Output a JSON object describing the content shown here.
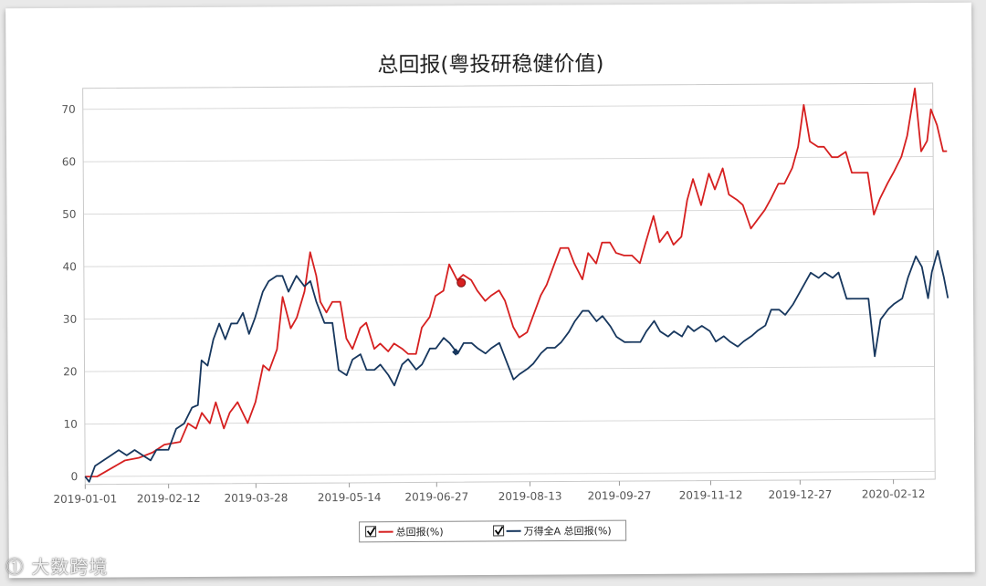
{
  "chart_data": {
    "type": "line",
    "title": "总回报(粤投研稳健价值)",
    "xlabel": "",
    "ylabel": "",
    "x_start": "2019-01-01",
    "x_end": "2020-03-04",
    "x_ticks": [
      "2019-01-01",
      "2019-02-12",
      "2019-03-28",
      "2019-05-14",
      "2019-06-27",
      "2019-08-13",
      "2019-09-27",
      "2019-11-12",
      "2019-12-27",
      "2020-02-12"
    ],
    "y_ticks": [
      0,
      10,
      20,
      30,
      40,
      50,
      60,
      70
    ],
    "ylim": [
      -1.5,
      74
    ],
    "grid": "horizontal",
    "legend_position": "bottom-center",
    "series": [
      {
        "name": "总回报(%)",
        "color": "#d62020",
        "marker_date": "2019-07-10",
        "marker_value": 36.5,
        "points": [
          [
            "2019-01-01",
            0
          ],
          [
            "2019-01-07",
            0
          ],
          [
            "2019-01-14",
            1.5
          ],
          [
            "2019-01-21",
            3
          ],
          [
            "2019-01-28",
            3.5
          ],
          [
            "2019-02-04",
            4.5
          ],
          [
            "2019-02-10",
            6
          ],
          [
            "2019-02-18",
            6.5
          ],
          [
            "2019-02-22",
            10
          ],
          [
            "2019-02-26",
            9
          ],
          [
            "2019-03-01",
            12
          ],
          [
            "2019-03-05",
            10
          ],
          [
            "2019-03-08",
            14
          ],
          [
            "2019-03-12",
            9
          ],
          [
            "2019-03-15",
            12
          ],
          [
            "2019-03-19",
            14
          ],
          [
            "2019-03-24",
            10
          ],
          [
            "2019-03-28",
            14
          ],
          [
            "2019-04-01",
            21
          ],
          [
            "2019-04-04",
            20
          ],
          [
            "2019-04-08",
            24
          ],
          [
            "2019-04-11",
            34
          ],
          [
            "2019-04-15",
            28
          ],
          [
            "2019-04-18",
            30
          ],
          [
            "2019-04-22",
            35
          ],
          [
            "2019-04-25",
            42.5
          ],
          [
            "2019-04-28",
            38
          ],
          [
            "2019-04-30",
            33
          ],
          [
            "2019-05-03",
            31
          ],
          [
            "2019-05-06",
            33
          ],
          [
            "2019-05-10",
            33
          ],
          [
            "2019-05-13",
            26
          ],
          [
            "2019-05-16",
            24
          ],
          [
            "2019-05-20",
            28
          ],
          [
            "2019-05-23",
            29
          ],
          [
            "2019-05-27",
            24
          ],
          [
            "2019-05-30",
            25
          ],
          [
            "2019-06-03",
            23.5
          ],
          [
            "2019-06-06",
            25
          ],
          [
            "2019-06-10",
            24
          ],
          [
            "2019-06-13",
            23
          ],
          [
            "2019-06-17",
            23
          ],
          [
            "2019-06-20",
            28
          ],
          [
            "2019-06-24",
            30
          ],
          [
            "2019-06-27",
            34
          ],
          [
            "2019-07-01",
            35
          ],
          [
            "2019-07-04",
            40
          ],
          [
            "2019-07-08",
            37
          ],
          [
            "2019-07-11",
            38
          ],
          [
            "2019-07-15",
            37
          ],
          [
            "2019-07-18",
            35
          ],
          [
            "2019-07-22",
            33
          ],
          [
            "2019-07-25",
            34
          ],
          [
            "2019-07-29",
            35
          ],
          [
            "2019-08-01",
            33
          ],
          [
            "2019-08-05",
            28
          ],
          [
            "2019-08-08",
            26
          ],
          [
            "2019-08-12",
            27
          ],
          [
            "2019-08-15",
            30
          ],
          [
            "2019-08-19",
            34
          ],
          [
            "2019-08-22",
            36
          ],
          [
            "2019-08-26",
            40
          ],
          [
            "2019-08-29",
            43
          ],
          [
            "2019-09-02",
            43
          ],
          [
            "2019-09-05",
            40
          ],
          [
            "2019-09-09",
            37
          ],
          [
            "2019-09-12",
            42
          ],
          [
            "2019-09-16",
            40
          ],
          [
            "2019-09-19",
            44
          ],
          [
            "2019-09-23",
            44
          ],
          [
            "2019-09-26",
            42
          ],
          [
            "2019-09-30",
            41.5
          ],
          [
            "2019-10-04",
            41.5
          ],
          [
            "2019-10-08",
            40
          ],
          [
            "2019-10-11",
            44
          ],
          [
            "2019-10-15",
            49
          ],
          [
            "2019-10-18",
            44
          ],
          [
            "2019-10-22",
            46
          ],
          [
            "2019-10-25",
            43.5
          ],
          [
            "2019-10-29",
            45
          ],
          [
            "2019-11-01",
            52
          ],
          [
            "2019-11-04",
            56
          ],
          [
            "2019-11-08",
            51
          ],
          [
            "2019-11-12",
            57
          ],
          [
            "2019-11-15",
            54
          ],
          [
            "2019-11-19",
            58
          ],
          [
            "2019-11-22",
            53
          ],
          [
            "2019-11-26",
            52
          ],
          [
            "2019-11-29",
            51
          ],
          [
            "2019-12-03",
            46.5
          ],
          [
            "2019-12-06",
            48
          ],
          [
            "2019-12-10",
            50
          ],
          [
            "2019-12-13",
            52
          ],
          [
            "2019-12-17",
            55
          ],
          [
            "2019-12-20",
            55
          ],
          [
            "2019-12-24",
            58
          ],
          [
            "2019-12-27",
            62
          ],
          [
            "2019-12-30",
            70
          ],
          [
            "2020-01-02",
            63
          ],
          [
            "2020-01-06",
            62
          ],
          [
            "2020-01-09",
            62
          ],
          [
            "2020-01-13",
            60
          ],
          [
            "2020-01-16",
            60
          ],
          [
            "2020-01-20",
            61
          ],
          [
            "2020-01-23",
            57
          ],
          [
            "2020-01-27",
            57
          ],
          [
            "2020-01-31",
            57
          ],
          [
            "2020-02-03",
            49
          ],
          [
            "2020-02-06",
            52
          ],
          [
            "2020-02-10",
            55
          ],
          [
            "2020-02-13",
            57
          ],
          [
            "2020-02-17",
            60
          ],
          [
            "2020-02-20",
            64
          ],
          [
            "2020-02-24",
            73
          ],
          [
            "2020-02-27",
            61
          ],
          [
            "2020-03-01",
            63
          ],
          [
            "2020-03-03",
            69
          ],
          [
            "2020-03-06",
            66
          ],
          [
            "2020-03-09",
            61
          ],
          [
            "2020-03-11",
            61
          ]
        ]
      },
      {
        "name": "万得全A 总回报(%)",
        "color": "#17375e",
        "marker_date": "2019-07-07",
        "marker_value": 23.3,
        "points": [
          [
            "2019-01-01",
            0
          ],
          [
            "2019-01-03",
            -1
          ],
          [
            "2019-01-06",
            2
          ],
          [
            "2019-01-10",
            3
          ],
          [
            "2019-01-14",
            4
          ],
          [
            "2019-01-18",
            5
          ],
          [
            "2019-01-22",
            4
          ],
          [
            "2019-01-26",
            5
          ],
          [
            "2019-01-30",
            4
          ],
          [
            "2019-02-03",
            3
          ],
          [
            "2019-02-06",
            5
          ],
          [
            "2019-02-12",
            5
          ],
          [
            "2019-02-16",
            9
          ],
          [
            "2019-02-20",
            10
          ],
          [
            "2019-02-24",
            13
          ],
          [
            "2019-02-27",
            13.5
          ],
          [
            "2019-03-01",
            22
          ],
          [
            "2019-03-04",
            21
          ],
          [
            "2019-03-07",
            26
          ],
          [
            "2019-03-10",
            29
          ],
          [
            "2019-03-13",
            26
          ],
          [
            "2019-03-16",
            29
          ],
          [
            "2019-03-19",
            29
          ],
          [
            "2019-03-22",
            31
          ],
          [
            "2019-03-25",
            27
          ],
          [
            "2019-03-28",
            30
          ],
          [
            "2019-04-01",
            35
          ],
          [
            "2019-04-04",
            37
          ],
          [
            "2019-04-08",
            38
          ],
          [
            "2019-04-11",
            38
          ],
          [
            "2019-04-14",
            35
          ],
          [
            "2019-04-18",
            38
          ],
          [
            "2019-04-22",
            36
          ],
          [
            "2019-04-25",
            37
          ],
          [
            "2019-04-28",
            33
          ],
          [
            "2019-05-02",
            29
          ],
          [
            "2019-05-06",
            29
          ],
          [
            "2019-05-09",
            20
          ],
          [
            "2019-05-13",
            19
          ],
          [
            "2019-05-16",
            22
          ],
          [
            "2019-05-20",
            23
          ],
          [
            "2019-05-23",
            20
          ],
          [
            "2019-05-27",
            20
          ],
          [
            "2019-05-30",
            21
          ],
          [
            "2019-06-03",
            19
          ],
          [
            "2019-06-06",
            17
          ],
          [
            "2019-06-10",
            21
          ],
          [
            "2019-06-13",
            22
          ],
          [
            "2019-06-17",
            20
          ],
          [
            "2019-06-20",
            21
          ],
          [
            "2019-06-24",
            24
          ],
          [
            "2019-06-27",
            24
          ],
          [
            "2019-07-01",
            26
          ],
          [
            "2019-07-04",
            25
          ],
          [
            "2019-07-08",
            23
          ],
          [
            "2019-07-11",
            25
          ],
          [
            "2019-07-15",
            25
          ],
          [
            "2019-07-18",
            24
          ],
          [
            "2019-07-22",
            23
          ],
          [
            "2019-07-25",
            24
          ],
          [
            "2019-07-29",
            25
          ],
          [
            "2019-08-01",
            22
          ],
          [
            "2019-08-05",
            18
          ],
          [
            "2019-08-08",
            19
          ],
          [
            "2019-08-12",
            20
          ],
          [
            "2019-08-15",
            21
          ],
          [
            "2019-08-19",
            23
          ],
          [
            "2019-08-22",
            24
          ],
          [
            "2019-08-26",
            24
          ],
          [
            "2019-08-29",
            25
          ],
          [
            "2019-09-02",
            27
          ],
          [
            "2019-09-05",
            29
          ],
          [
            "2019-09-09",
            31
          ],
          [
            "2019-09-12",
            31
          ],
          [
            "2019-09-16",
            29
          ],
          [
            "2019-09-19",
            30
          ],
          [
            "2019-09-23",
            28
          ],
          [
            "2019-09-26",
            26
          ],
          [
            "2019-09-30",
            25
          ],
          [
            "2019-10-04",
            25
          ],
          [
            "2019-10-08",
            25
          ],
          [
            "2019-10-11",
            27
          ],
          [
            "2019-10-15",
            29
          ],
          [
            "2019-10-18",
            27
          ],
          [
            "2019-10-22",
            26
          ],
          [
            "2019-10-25",
            27
          ],
          [
            "2019-10-29",
            26
          ],
          [
            "2019-11-01",
            28
          ],
          [
            "2019-11-04",
            27
          ],
          [
            "2019-11-08",
            28
          ],
          [
            "2019-11-12",
            27
          ],
          [
            "2019-11-15",
            25
          ],
          [
            "2019-11-19",
            26
          ],
          [
            "2019-11-22",
            25
          ],
          [
            "2019-11-26",
            24
          ],
          [
            "2019-11-29",
            25
          ],
          [
            "2019-12-03",
            26
          ],
          [
            "2019-12-06",
            27
          ],
          [
            "2019-12-10",
            28
          ],
          [
            "2019-12-13",
            31
          ],
          [
            "2019-12-17",
            31
          ],
          [
            "2019-12-20",
            30
          ],
          [
            "2019-12-24",
            32
          ],
          [
            "2019-12-27",
            34
          ],
          [
            "2019-12-30",
            36
          ],
          [
            "2020-01-02",
            38
          ],
          [
            "2020-01-06",
            37
          ],
          [
            "2020-01-09",
            38
          ],
          [
            "2020-01-13",
            37
          ],
          [
            "2020-01-16",
            38
          ],
          [
            "2020-01-20",
            33
          ],
          [
            "2020-01-23",
            33
          ],
          [
            "2020-01-27",
            33
          ],
          [
            "2020-01-31",
            33
          ],
          [
            "2020-02-03",
            22
          ],
          [
            "2020-02-06",
            29
          ],
          [
            "2020-02-10",
            31
          ],
          [
            "2020-02-13",
            32
          ],
          [
            "2020-02-17",
            33
          ],
          [
            "2020-02-20",
            37
          ],
          [
            "2020-02-24",
            41
          ],
          [
            "2020-02-27",
            39
          ],
          [
            "2020-03-01",
            33
          ],
          [
            "2020-03-03",
            38
          ],
          [
            "2020-03-06",
            42
          ],
          [
            "2020-03-09",
            37
          ],
          [
            "2020-03-11",
            33
          ]
        ]
      }
    ]
  },
  "watermark": "大数跨境"
}
